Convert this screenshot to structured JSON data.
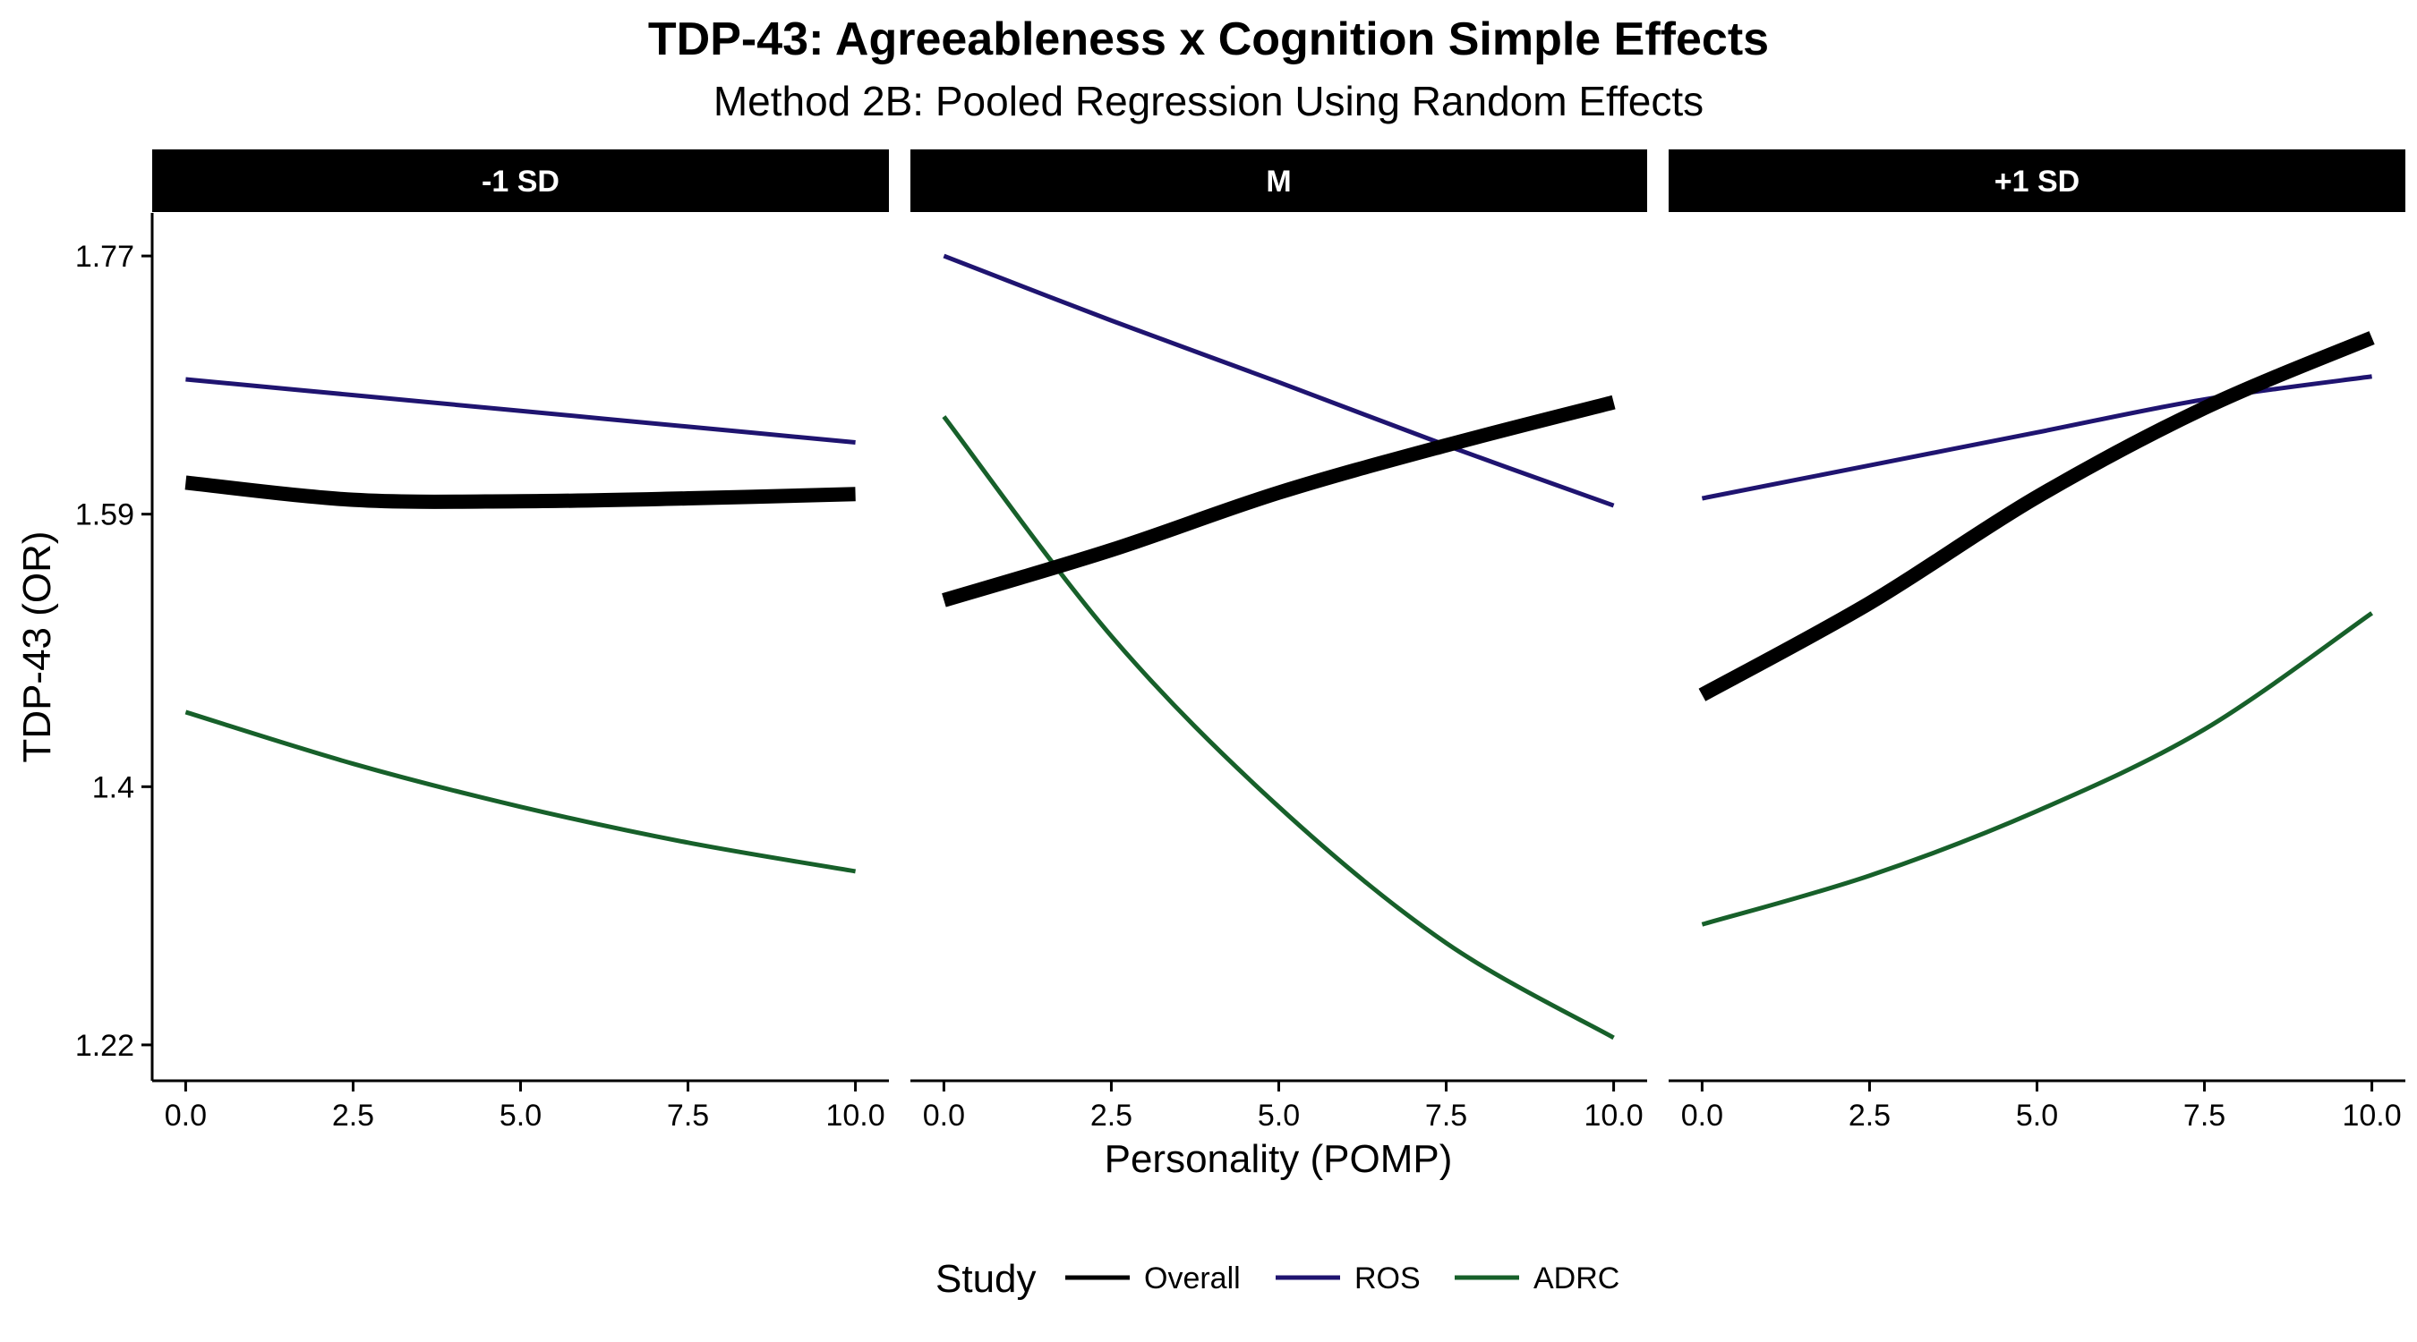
{
  "chart_data": {
    "type": "line",
    "title": "TDP-43: Agreeableness x Cognition Simple Effects",
    "subtitle": "Method 2B: Pooled Regression Using Random Effects",
    "xlabel": "Personality (POMP)",
    "ylabel": "TDP-43 (OR)",
    "xlim": [
      -0.5,
      10.5
    ],
    "ylim": [
      1.195,
      1.8
    ],
    "xticks": [
      "0.0",
      "2.5",
      "5.0",
      "7.5",
      "10.0"
    ],
    "xtick_values": [
      0,
      2.5,
      5,
      7.5,
      10
    ],
    "yticks": [
      "1.22",
      "1.4",
      "1.59",
      "1.77"
    ],
    "ytick_values": [
      1.22,
      1.4,
      1.59,
      1.77
    ],
    "legend": {
      "title": "Study",
      "position": "bottom",
      "entries": [
        "Overall",
        "ROS",
        "ADRC"
      ]
    },
    "series_styles": {
      "Overall": {
        "color": "#000000",
        "weight": "thick"
      },
      "ROS": {
        "color": "#1f1470",
        "weight": "thin"
      },
      "ADRC": {
        "color": "#17602a",
        "weight": "thin"
      }
    },
    "panels": [
      {
        "label": "-1 SD",
        "series": [
          {
            "name": "Overall",
            "x": [
              0,
              2.5,
              5,
              7.5,
              10
            ],
            "y": [
              1.612,
              1.6,
              1.599,
              1.601,
              1.604
            ]
          },
          {
            "name": "ROS",
            "x": [
              0,
              2.5,
              5,
              7.5,
              10
            ],
            "y": [
              1.684,
              1.673,
              1.662,
              1.651,
              1.64
            ]
          },
          {
            "name": "ADRC",
            "x": [
              0,
              2.5,
              5,
              7.5,
              10
            ],
            "y": [
              1.452,
              1.416,
              1.386,
              1.361,
              1.341
            ]
          }
        ]
      },
      {
        "label": "M",
        "series": [
          {
            "name": "Overall",
            "x": [
              0,
              2.5,
              5,
              7.5,
              10
            ],
            "y": [
              1.53,
              1.565,
              1.605,
              1.638,
              1.668
            ]
          },
          {
            "name": "ROS",
            "x": [
              0,
              2.5,
              5,
              7.5,
              10
            ],
            "y": [
              1.77,
              1.725,
              1.682,
              1.638,
              1.596
            ]
          },
          {
            "name": "ADRC",
            "x": [
              0,
              2.5,
              5,
              7.5,
              10
            ],
            "y": [
              1.658,
              1.505,
              1.386,
              1.291,
              1.225
            ]
          }
        ]
      },
      {
        "label": "+1 SD",
        "series": [
          {
            "name": "Overall",
            "x": [
              0,
              2.5,
              5,
              7.5,
              10
            ],
            "y": [
              1.464,
              1.528,
              1.602,
              1.664,
              1.713
            ]
          },
          {
            "name": "ROS",
            "x": [
              0,
              2.5,
              5,
              7.5,
              10
            ],
            "y": [
              1.601,
              1.624,
              1.647,
              1.67,
              1.686
            ]
          },
          {
            "name": "ADRC",
            "x": [
              0,
              2.5,
              5,
              7.5,
              10
            ],
            "y": [
              1.304,
              1.338,
              1.383,
              1.44,
              1.521
            ]
          }
        ]
      }
    ]
  }
}
